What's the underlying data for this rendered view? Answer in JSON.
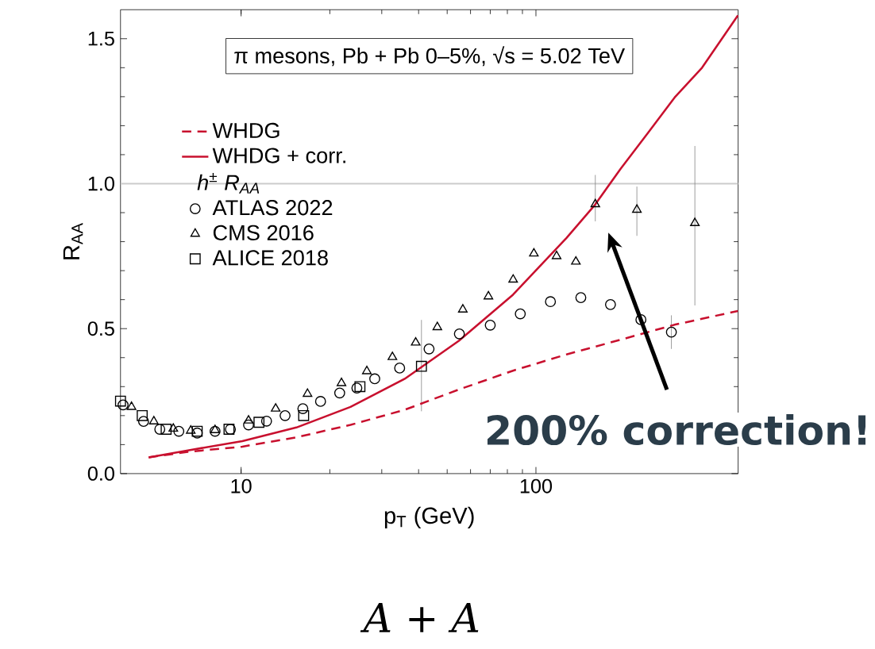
{
  "chart_data": {
    "type": "scatter",
    "title": "π mesons, Pb + Pb 0–5%, √s = 5.02 TeV",
    "xlabel": "p$_{T}$ (GeV)",
    "ylabel": "R$_{AA}$",
    "legend_title": "h$^{±}$ R$_{AA}$",
    "log": "x",
    "xlim": [
      3.9,
      485
    ],
    "ylim": [
      0,
      1.6
    ],
    "xticks": [
      10,
      100
    ],
    "yticks": [
      {
        "value": 0,
        "label": "0.0"
      },
      {
        "value": 0.5,
        "label": "0.5"
      },
      {
        "value": 1,
        "label": "1.0"
      },
      {
        "value": 1.5,
        "label": "1.5"
      }
    ],
    "legend": "top left",
    "ref_lines": [
      {
        "axis": "y",
        "value": 1,
        "color": "#cccccc"
      }
    ],
    "annotations": [
      "200% correction!",
      "*A + A*"
    ],
    "series": [
      {
        "name": "WHDG",
        "type": "line",
        "line_style": "dashed",
        "color": "#c8102e",
        "x": [
          4.86,
          6.6,
          10.1,
          15.4,
          23.5,
          35.9,
          54.8,
          83.6,
          127,
          194,
          297,
          484
        ],
        "values": [
          0.056,
          0.075,
          0.093,
          0.125,
          0.168,
          0.22,
          0.29,
          0.355,
          0.411,
          0.462,
          0.514,
          0.561
        ]
      },
      {
        "name": "WHDG + corr.",
        "type": "line",
        "line_style": "solid",
        "color": "#c8102e",
        "x": [
          4.86,
          6.6,
          10.1,
          15.4,
          23.5,
          35.9,
          54.8,
          83.6,
          127,
          158,
          194,
          241,
          297,
          366,
          484
        ],
        "values": [
          0.056,
          0.08,
          0.112,
          0.159,
          0.23,
          0.327,
          0.458,
          0.617,
          0.813,
          0.925,
          1.052,
          1.178,
          1.3,
          1.4,
          1.58
        ]
      },
      {
        "name": "ATLAS 2022",
        "marker": "circle",
        "color": "#000000",
        "x": [
          3.98,
          4.67,
          5.3,
          6.15,
          7.1,
          8.16,
          9.2,
          10.6,
          12.2,
          14.1,
          16.2,
          18.6,
          21.6,
          24.7,
          28.4,
          34.5,
          43.4,
          55,
          70,
          88.5,
          112,
          142,
          179,
          227,
          288
        ],
        "values": [
          0.237,
          0.18,
          0.153,
          0.146,
          0.14,
          0.146,
          0.153,
          0.168,
          0.181,
          0.2,
          0.224,
          0.249,
          0.278,
          0.295,
          0.327,
          0.364,
          0.43,
          0.482,
          0.512,
          0.551,
          0.593,
          0.607,
          0.583,
          0.531,
          0.488
        ],
        "errors": [
          null,
          null,
          null,
          null,
          null,
          null,
          null,
          null,
          null,
          null,
          null,
          null,
          null,
          null,
          null,
          null,
          null,
          null,
          null,
          null,
          null,
          null,
          null,
          null,
          [
            0.43,
            0.546
          ]
        ]
      },
      {
        "name": "CMS 2016",
        "marker": "triangle",
        "color": "#000000",
        "x": [
          4.25,
          5.06,
          5.89,
          6.75,
          8.16,
          10.6,
          13.1,
          16.8,
          21.9,
          26.7,
          32.6,
          39.1,
          46.3,
          56.5,
          69,
          83.7,
          98.4,
          117.5,
          136.6,
          159,
          220,
          346
        ],
        "values": [
          0.23,
          0.18,
          0.155,
          0.148,
          0.15,
          0.183,
          0.224,
          0.275,
          0.312,
          0.353,
          0.402,
          0.452,
          0.505,
          0.566,
          0.611,
          0.669,
          0.759,
          0.75,
          0.731,
          0.929,
          0.91,
          0.864
        ],
        "errors": [
          null,
          null,
          null,
          null,
          null,
          null,
          null,
          null,
          null,
          null,
          null,
          null,
          null,
          null,
          null,
          null,
          null,
          null,
          null,
          [
            0.87,
            1.03
          ],
          [
            0.82,
            0.99
          ],
          [
            0.58,
            1.13
          ]
        ]
      },
      {
        "name": "ALICE 2018",
        "marker": "square",
        "color": "#000000",
        "x": [
          3.9,
          4.62,
          5.57,
          7.1,
          9.1,
          11.5,
          16.3,
          25.3,
          40.9
        ],
        "values": [
          0.25,
          0.2,
          0.153,
          0.146,
          0.153,
          0.177,
          0.2,
          0.3,
          0.37
        ],
        "errors": [
          null,
          null,
          null,
          null,
          null,
          null,
          null,
          null,
          [
            0.215,
            0.53
          ]
        ]
      }
    ]
  }
}
